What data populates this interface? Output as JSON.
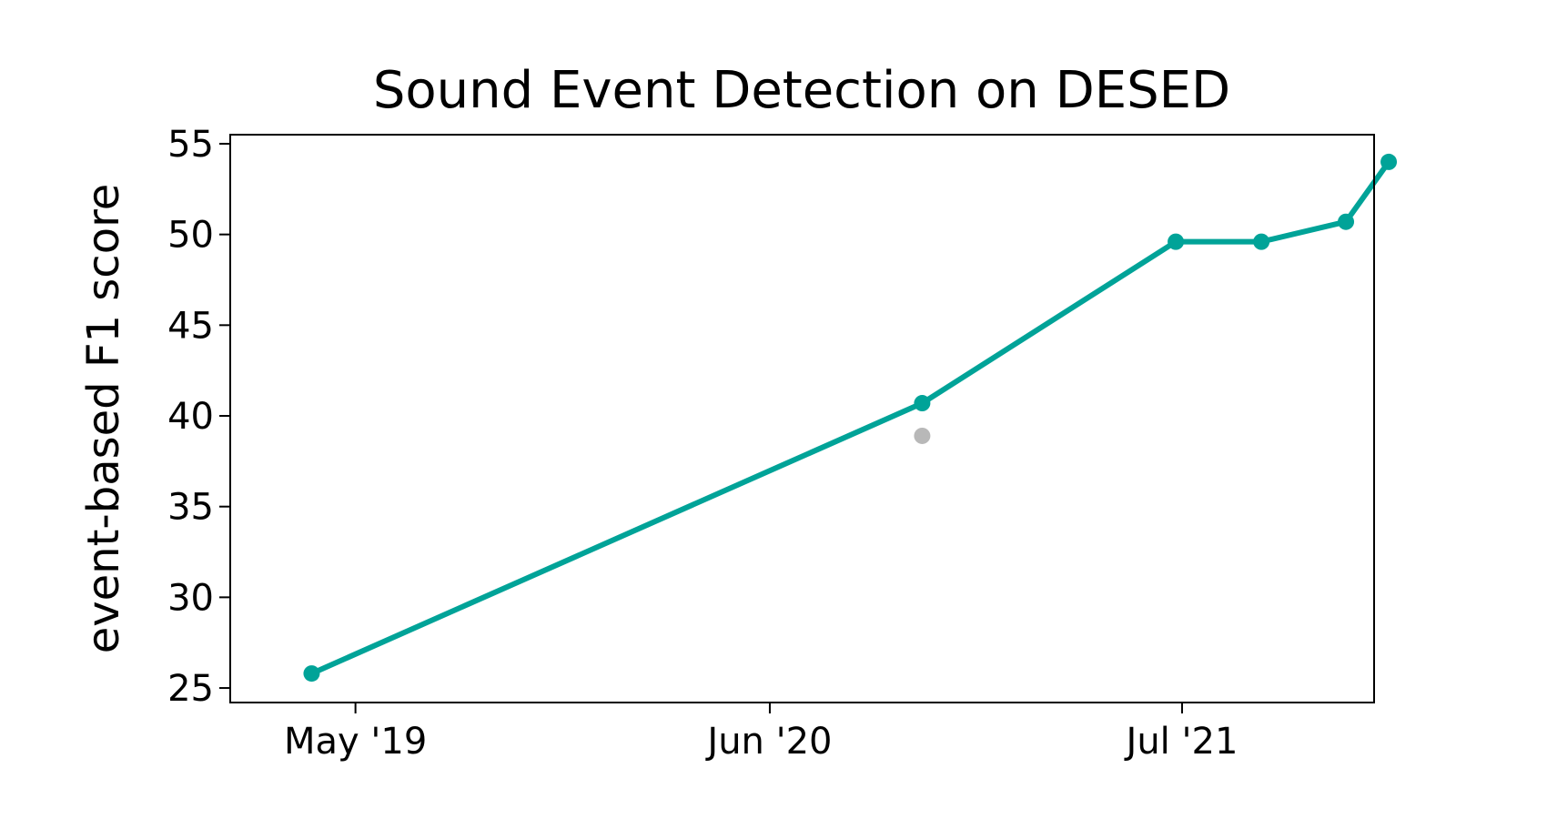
{
  "chart_data": {
    "type": "line",
    "title": "Sound Event Detection on DESED",
    "xlabel": "",
    "ylabel": "event-based F1 score",
    "x_tick_labels": [
      "May '19",
      "Jun '20",
      "Jul '21"
    ],
    "x_tick_dates": [
      "2019-05-01",
      "2020-06-01",
      "2021-07-01"
    ],
    "xlim": [
      "2019-01-01",
      "2022-01-01"
    ],
    "ylim": [
      24.2,
      55.5
    ],
    "y_ticks": [
      25,
      30,
      35,
      40,
      45,
      50,
      55
    ],
    "grid": false,
    "series": [
      {
        "color": "#00a398",
        "points": [
          {
            "x": "2019-03-20",
            "y": 25.8
          },
          {
            "x": "2020-10-25",
            "y": 40.7
          },
          {
            "x": "2021-06-25",
            "y": 49.6
          },
          {
            "x": "2021-09-15",
            "y": 49.6
          },
          {
            "x": "2021-12-05",
            "y": 50.7
          },
          {
            "x": "2022-01-15",
            "y": 54.0
          }
        ]
      },
      {
        "color": "#b8b8b8",
        "points": [
          {
            "x": "2020-10-25",
            "y": 38.9
          }
        ]
      }
    ]
  }
}
